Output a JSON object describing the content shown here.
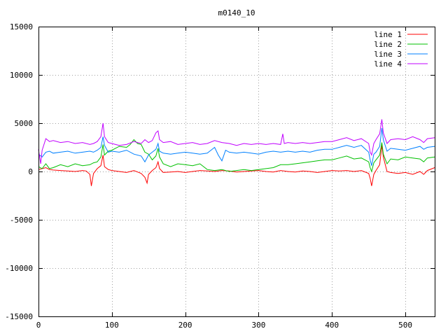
{
  "chart_data": {
    "type": "line",
    "title": "m0140_10",
    "xlabel": "",
    "ylabel": "",
    "xlim": [
      0,
      540
    ],
    "ylim": [
      -15000,
      15000
    ],
    "xticks": [
      0,
      100,
      200,
      300,
      400,
      500
    ],
    "yticks": [
      -15000,
      -10000,
      -5000,
      0,
      5000,
      10000,
      15000
    ],
    "grid": true,
    "legend_position": "top-right",
    "series": [
      {
        "name": "line 1",
        "color": "#ff0000",
        "points": [
          [
            0,
            200
          ],
          [
            5,
            300
          ],
          [
            10,
            400
          ],
          [
            15,
            200
          ],
          [
            20,
            150
          ],
          [
            30,
            100
          ],
          [
            40,
            50
          ],
          [
            50,
            0
          ],
          [
            60,
            100
          ],
          [
            65,
            50
          ],
          [
            70,
            -300
          ],
          [
            72,
            -1500
          ],
          [
            75,
            -200
          ],
          [
            80,
            300
          ],
          [
            85,
            600
          ],
          [
            88,
            1700
          ],
          [
            90,
            500
          ],
          [
            95,
            200
          ],
          [
            100,
            100
          ],
          [
            110,
            0
          ],
          [
            120,
            -100
          ],
          [
            130,
            100
          ],
          [
            135,
            -50
          ],
          [
            140,
            -200
          ],
          [
            145,
            -600
          ],
          [
            148,
            -1200
          ],
          [
            150,
            -300
          ],
          [
            155,
            100
          ],
          [
            160,
            400
          ],
          [
            163,
            1000
          ],
          [
            165,
            300
          ],
          [
            170,
            -100
          ],
          [
            180,
            -50
          ],
          [
            190,
            0
          ],
          [
            200,
            -100
          ],
          [
            210,
            0
          ],
          [
            220,
            100
          ],
          [
            230,
            50
          ],
          [
            240,
            0
          ],
          [
            250,
            100
          ],
          [
            260,
            50
          ],
          [
            270,
            -50
          ],
          [
            280,
            0
          ],
          [
            290,
            50
          ],
          [
            300,
            100
          ],
          [
            310,
            0
          ],
          [
            320,
            -50
          ],
          [
            330,
            100
          ],
          [
            340,
            0
          ],
          [
            350,
            -50
          ],
          [
            360,
            50
          ],
          [
            370,
            0
          ],
          [
            380,
            -100
          ],
          [
            390,
            0
          ],
          [
            400,
            100
          ],
          [
            410,
            50
          ],
          [
            420,
            100
          ],
          [
            430,
            0
          ],
          [
            440,
            100
          ],
          [
            450,
            -200
          ],
          [
            452,
            -700
          ],
          [
            454,
            -1500
          ],
          [
            457,
            -300
          ],
          [
            460,
            100
          ],
          [
            465,
            700
          ],
          [
            468,
            2700
          ],
          [
            470,
            1500
          ],
          [
            475,
            0
          ],
          [
            480,
            -100
          ],
          [
            490,
            -200
          ],
          [
            500,
            -100
          ],
          [
            510,
            -300
          ],
          [
            520,
            0
          ],
          [
            525,
            -300
          ],
          [
            530,
            100
          ],
          [
            540,
            400
          ]
        ]
      },
      {
        "name": "line 2",
        "color": "#00c000",
        "points": [
          [
            0,
            500
          ],
          [
            5,
            300
          ],
          [
            10,
            800
          ],
          [
            15,
            300
          ],
          [
            20,
            400
          ],
          [
            30,
            700
          ],
          [
            40,
            500
          ],
          [
            50,
            800
          ],
          [
            60,
            600
          ],
          [
            70,
            700
          ],
          [
            75,
            900
          ],
          [
            80,
            1000
          ],
          [
            85,
            1500
          ],
          [
            88,
            2800
          ],
          [
            90,
            1700
          ],
          [
            95,
            2100
          ],
          [
            100,
            2200
          ],
          [
            110,
            2600
          ],
          [
            120,
            2500
          ],
          [
            125,
            2800
          ],
          [
            130,
            3300
          ],
          [
            135,
            2900
          ],
          [
            140,
            2800
          ],
          [
            145,
            2000
          ],
          [
            150,
            1800
          ],
          [
            155,
            1200
          ],
          [
            160,
            1600
          ],
          [
            163,
            2400
          ],
          [
            165,
            1500
          ],
          [
            170,
            800
          ],
          [
            180,
            500
          ],
          [
            190,
            800
          ],
          [
            200,
            700
          ],
          [
            210,
            600
          ],
          [
            220,
            800
          ],
          [
            230,
            200
          ],
          [
            240,
            100
          ],
          [
            250,
            200
          ],
          [
            260,
            0
          ],
          [
            270,
            100
          ],
          [
            280,
            200
          ],
          [
            290,
            100
          ],
          [
            300,
            200
          ],
          [
            310,
            300
          ],
          [
            320,
            400
          ],
          [
            330,
            700
          ],
          [
            340,
            700
          ],
          [
            350,
            800
          ],
          [
            360,
            900
          ],
          [
            370,
            1000
          ],
          [
            380,
            1100
          ],
          [
            390,
            1200
          ],
          [
            400,
            1200
          ],
          [
            410,
            1400
          ],
          [
            420,
            1600
          ],
          [
            430,
            1300
          ],
          [
            440,
            1400
          ],
          [
            450,
            1000
          ],
          [
            452,
            400
          ],
          [
            454,
            0
          ],
          [
            457,
            900
          ],
          [
            460,
            1200
          ],
          [
            465,
            1700
          ],
          [
            468,
            3000
          ],
          [
            470,
            1800
          ],
          [
            475,
            800
          ],
          [
            480,
            1300
          ],
          [
            490,
            1200
          ],
          [
            500,
            1500
          ],
          [
            510,
            1400
          ],
          [
            520,
            1300
          ],
          [
            525,
            1000
          ],
          [
            530,
            1400
          ],
          [
            540,
            1500
          ]
        ]
      },
      {
        "name": "line 3",
        "color": "#0080ff",
        "points": [
          [
            0,
            1800
          ],
          [
            5,
            1500
          ],
          [
            10,
            2000
          ],
          [
            15,
            2100
          ],
          [
            20,
            1900
          ],
          [
            30,
            2000
          ],
          [
            40,
            2100
          ],
          [
            50,
            1900
          ],
          [
            60,
            2000
          ],
          [
            70,
            2100
          ],
          [
            75,
            2000
          ],
          [
            80,
            2200
          ],
          [
            85,
            2500
          ],
          [
            88,
            3600
          ],
          [
            90,
            2700
          ],
          [
            95,
            2000
          ],
          [
            100,
            2100
          ],
          [
            110,
            2000
          ],
          [
            120,
            2200
          ],
          [
            130,
            1800
          ],
          [
            140,
            1600
          ],
          [
            145,
            1000
          ],
          [
            150,
            1700
          ],
          [
            155,
            2000
          ],
          [
            160,
            2300
          ],
          [
            163,
            2900
          ],
          [
            165,
            2100
          ],
          [
            170,
            1900
          ],
          [
            180,
            1800
          ],
          [
            190,
            1900
          ],
          [
            200,
            2000
          ],
          [
            210,
            1900
          ],
          [
            220,
            1800
          ],
          [
            230,
            1900
          ],
          [
            240,
            2500
          ],
          [
            245,
            1700
          ],
          [
            250,
            1100
          ],
          [
            255,
            2200
          ],
          [
            260,
            2000
          ],
          [
            270,
            1900
          ],
          [
            280,
            2000
          ],
          [
            290,
            1900
          ],
          [
            300,
            1800
          ],
          [
            310,
            2000
          ],
          [
            320,
            2100
          ],
          [
            330,
            2000
          ],
          [
            340,
            2100
          ],
          [
            350,
            2000
          ],
          [
            360,
            2100
          ],
          [
            370,
            2000
          ],
          [
            380,
            2200
          ],
          [
            390,
            2300
          ],
          [
            400,
            2300
          ],
          [
            410,
            2500
          ],
          [
            420,
            2700
          ],
          [
            430,
            2500
          ],
          [
            440,
            2700
          ],
          [
            450,
            2000
          ],
          [
            452,
            1200
          ],
          [
            454,
            600
          ],
          [
            457,
            1800
          ],
          [
            460,
            2000
          ],
          [
            465,
            2600
          ],
          [
            468,
            4500
          ],
          [
            470,
            3300
          ],
          [
            475,
            2100
          ],
          [
            480,
            2400
          ],
          [
            490,
            2300
          ],
          [
            500,
            2200
          ],
          [
            510,
            2400
          ],
          [
            520,
            2600
          ],
          [
            525,
            2300
          ],
          [
            530,
            2500
          ],
          [
            540,
            2600
          ]
        ]
      },
      {
        "name": "line 4",
        "color": "#c000ff",
        "points": [
          [
            0,
            2300
          ],
          [
            3,
            800
          ],
          [
            5,
            2200
          ],
          [
            10,
            3400
          ],
          [
            15,
            3100
          ],
          [
            20,
            3200
          ],
          [
            30,
            3000
          ],
          [
            40,
            3100
          ],
          [
            50,
            2900
          ],
          [
            60,
            3000
          ],
          [
            70,
            2800
          ],
          [
            75,
            2900
          ],
          [
            80,
            3100
          ],
          [
            85,
            3600
          ],
          [
            88,
            5000
          ],
          [
            90,
            3600
          ],
          [
            95,
            3000
          ],
          [
            100,
            2900
          ],
          [
            110,
            2700
          ],
          [
            120,
            2800
          ],
          [
            130,
            3100
          ],
          [
            140,
            2900
          ],
          [
            145,
            3300
          ],
          [
            150,
            3000
          ],
          [
            155,
            3200
          ],
          [
            160,
            4000
          ],
          [
            163,
            4200
          ],
          [
            165,
            3300
          ],
          [
            170,
            3000
          ],
          [
            180,
            3100
          ],
          [
            190,
            2800
          ],
          [
            200,
            2900
          ],
          [
            210,
            3000
          ],
          [
            220,
            2800
          ],
          [
            230,
            2900
          ],
          [
            240,
            3200
          ],
          [
            250,
            3000
          ],
          [
            260,
            2900
          ],
          [
            270,
            2700
          ],
          [
            280,
            2900
          ],
          [
            290,
            2800
          ],
          [
            300,
            2900
          ],
          [
            310,
            2800
          ],
          [
            320,
            2900
          ],
          [
            330,
            2800
          ],
          [
            333,
            3900
          ],
          [
            335,
            2900
          ],
          [
            340,
            3000
          ],
          [
            350,
            2900
          ],
          [
            360,
            3000
          ],
          [
            370,
            2900
          ],
          [
            380,
            3000
          ],
          [
            390,
            3100
          ],
          [
            400,
            3100
          ],
          [
            410,
            3300
          ],
          [
            420,
            3500
          ],
          [
            430,
            3200
          ],
          [
            440,
            3400
          ],
          [
            450,
            2900
          ],
          [
            452,
            2000
          ],
          [
            454,
            1700
          ],
          [
            457,
            2900
          ],
          [
            460,
            3300
          ],
          [
            465,
            3900
          ],
          [
            468,
            5400
          ],
          [
            470,
            4000
          ],
          [
            475,
            2900
          ],
          [
            480,
            3300
          ],
          [
            490,
            3400
          ],
          [
            500,
            3300
          ],
          [
            510,
            3600
          ],
          [
            520,
            3300
          ],
          [
            525,
            3000
          ],
          [
            530,
            3400
          ],
          [
            540,
            3500
          ]
        ]
      }
    ]
  }
}
